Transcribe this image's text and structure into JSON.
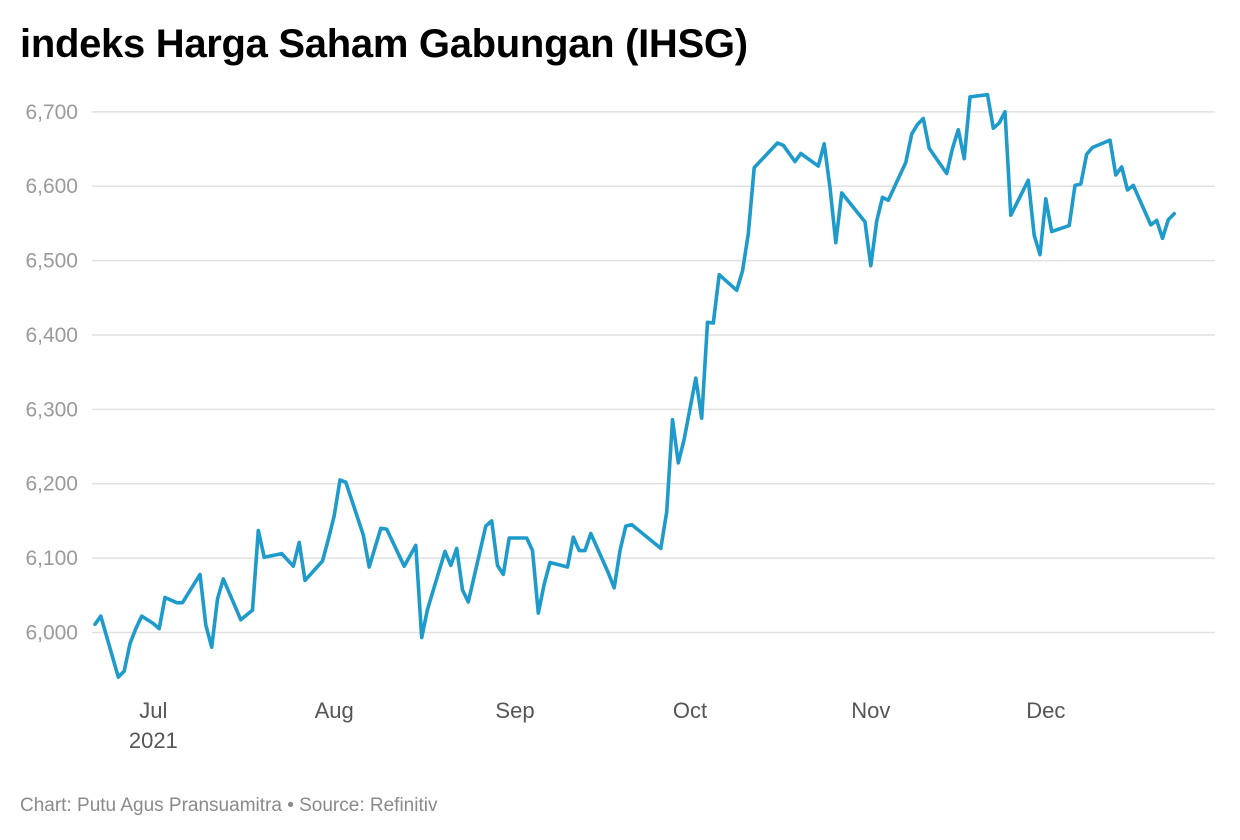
{
  "chart_data": {
    "type": "line",
    "title": "indeks Harga Saham Gabungan (IHSG)",
    "footer": "Chart: Putu Agus Pransuamitra • Source: Refinitiv",
    "ylim": [
      5930,
      6730
    ],
    "yticks": [
      6000,
      6100,
      6200,
      6300,
      6400,
      6500,
      6600,
      6700
    ],
    "ytick_labels": [
      "6,000",
      "6,100",
      "6,200",
      "6,300",
      "6,400",
      "6,500",
      "6,600",
      "6,700"
    ],
    "xlim": [
      "2021-06-21",
      "2021-12-30"
    ],
    "xticks": [
      {
        "date": "2021-07-01",
        "label": "Jul",
        "sublabel": "2021"
      },
      {
        "date": "2021-08-01",
        "label": "Aug",
        "sublabel": ""
      },
      {
        "date": "2021-09-01",
        "label": "Sep",
        "sublabel": ""
      },
      {
        "date": "2021-10-01",
        "label": "Oct",
        "sublabel": ""
      },
      {
        "date": "2021-11-01",
        "label": "Nov",
        "sublabel": ""
      },
      {
        "date": "2021-12-01",
        "label": "Dec",
        "sublabel": ""
      }
    ],
    "grid": true,
    "line_color": "#1e9bcb",
    "series": [
      {
        "name": "",
        "points": [
          [
            "2021-06-21",
            6011
          ],
          [
            "2021-06-22",
            6022
          ],
          [
            "2021-06-25",
            5940
          ],
          [
            "2021-06-26",
            5948
          ],
          [
            "2021-06-27",
            5985
          ],
          [
            "2021-06-28",
            6005
          ],
          [
            "2021-06-29",
            6022
          ],
          [
            "2021-07-01",
            6012
          ],
          [
            "2021-07-02",
            6005
          ],
          [
            "2021-07-03",
            6047
          ],
          [
            "2021-07-05",
            6040
          ],
          [
            "2021-07-06",
            6040
          ],
          [
            "2021-07-09",
            6078
          ],
          [
            "2021-07-10",
            6010
          ],
          [
            "2021-07-11",
            5980
          ],
          [
            "2021-07-12",
            6045
          ],
          [
            "2021-07-13",
            6072
          ],
          [
            "2021-07-16",
            6017
          ],
          [
            "2021-07-18",
            6030
          ],
          [
            "2021-07-19",
            6137
          ],
          [
            "2021-07-20",
            6101
          ],
          [
            "2021-07-23",
            6106
          ],
          [
            "2021-07-25",
            6089
          ],
          [
            "2021-07-26",
            6121
          ],
          [
            "2021-07-27",
            6070
          ],
          [
            "2021-07-30",
            6096
          ],
          [
            "2021-07-31",
            6125
          ],
          [
            "2021-08-01",
            6157
          ],
          [
            "2021-08-02",
            6205
          ],
          [
            "2021-08-03",
            6202
          ],
          [
            "2021-08-06",
            6131
          ],
          [
            "2021-08-07",
            6088
          ],
          [
            "2021-08-09",
            6140
          ],
          [
            "2021-08-10",
            6139
          ],
          [
            "2021-08-13",
            6089
          ],
          [
            "2021-08-15",
            6117
          ],
          [
            "2021-08-16",
            5993
          ],
          [
            "2021-08-17",
            6031
          ],
          [
            "2021-08-20",
            6109
          ],
          [
            "2021-08-21",
            6090
          ],
          [
            "2021-08-22",
            6113
          ],
          [
            "2021-08-23",
            6057
          ],
          [
            "2021-08-24",
            6041
          ],
          [
            "2021-08-27",
            6143
          ],
          [
            "2021-08-28",
            6150
          ],
          [
            "2021-08-29",
            6090
          ],
          [
            "2021-08-30",
            6078
          ],
          [
            "2021-08-31",
            6127
          ],
          [
            "2021-09-03",
            6127
          ],
          [
            "2021-09-04",
            6110
          ],
          [
            "2021-09-05",
            6026
          ],
          [
            "2021-09-06",
            6065
          ],
          [
            "2021-09-07",
            6094
          ],
          [
            "2021-09-10",
            6088
          ],
          [
            "2021-09-11",
            6128
          ],
          [
            "2021-09-12",
            6110
          ],
          [
            "2021-09-13",
            6110
          ],
          [
            "2021-09-14",
            6133
          ],
          [
            "2021-09-17",
            6080
          ],
          [
            "2021-09-18",
            6060
          ],
          [
            "2021-09-19",
            6110
          ],
          [
            "2021-09-20",
            6143
          ],
          [
            "2021-09-21",
            6145
          ],
          [
            "2021-09-26",
            6113
          ],
          [
            "2021-09-27",
            6162
          ],
          [
            "2021-09-28",
            6286
          ],
          [
            "2021-09-29",
            6228
          ],
          [
            "2021-09-30",
            6260
          ],
          [
            "2021-10-02",
            6342
          ],
          [
            "2021-10-03",
            6288
          ],
          [
            "2021-10-04",
            6417
          ],
          [
            "2021-10-05",
            6416
          ],
          [
            "2021-10-06",
            6481
          ],
          [
            "2021-10-09",
            6460
          ],
          [
            "2021-10-10",
            6486
          ],
          [
            "2021-10-11",
            6536
          ],
          [
            "2021-10-12",
            6625
          ],
          [
            "2021-10-16",
            6658
          ],
          [
            "2021-10-17",
            6655
          ],
          [
            "2021-10-19",
            6633
          ],
          [
            "2021-10-20",
            6644
          ],
          [
            "2021-10-23",
            6627
          ],
          [
            "2021-10-24",
            6657
          ],
          [
            "2021-10-25",
            6598
          ],
          [
            "2021-10-26",
            6524
          ],
          [
            "2021-10-27",
            6591
          ],
          [
            "2021-10-31",
            6552
          ],
          [
            "2021-11-01",
            6493
          ],
          [
            "2021-11-02",
            6553
          ],
          [
            "2021-11-03",
            6585
          ],
          [
            "2021-11-04",
            6581
          ],
          [
            "2021-11-07",
            6632
          ],
          [
            "2021-11-08",
            6670
          ],
          [
            "2021-11-09",
            6683
          ],
          [
            "2021-11-10",
            6691
          ],
          [
            "2021-11-11",
            6651
          ],
          [
            "2021-11-14",
            6617
          ],
          [
            "2021-11-15",
            6651
          ],
          [
            "2021-11-16",
            6676
          ],
          [
            "2021-11-17",
            6637
          ],
          [
            "2021-11-18",
            6720
          ],
          [
            "2021-11-21",
            6723
          ],
          [
            "2021-11-22",
            6678
          ],
          [
            "2021-11-23",
            6685
          ],
          [
            "2021-11-24",
            6700
          ],
          [
            "2021-11-25",
            6561
          ],
          [
            "2021-11-28",
            6608
          ],
          [
            "2021-11-29",
            6534
          ],
          [
            "2021-11-30",
            6508
          ],
          [
            "2021-12-01",
            6583
          ],
          [
            "2021-12-02",
            6539
          ],
          [
            "2021-12-05",
            6547
          ],
          [
            "2021-12-06",
            6601
          ],
          [
            "2021-12-07",
            6603
          ],
          [
            "2021-12-08",
            6643
          ],
          [
            "2021-12-09",
            6652
          ],
          [
            "2021-12-12",
            6662
          ],
          [
            "2021-12-13",
            6615
          ],
          [
            "2021-12-14",
            6626
          ],
          [
            "2021-12-15",
            6595
          ],
          [
            "2021-12-16",
            6601
          ],
          [
            "2021-12-19",
            6548
          ],
          [
            "2021-12-20",
            6554
          ],
          [
            "2021-12-21",
            6530
          ],
          [
            "2021-12-22",
            6555
          ],
          [
            "2021-12-23",
            6563
          ]
        ]
      }
    ]
  }
}
